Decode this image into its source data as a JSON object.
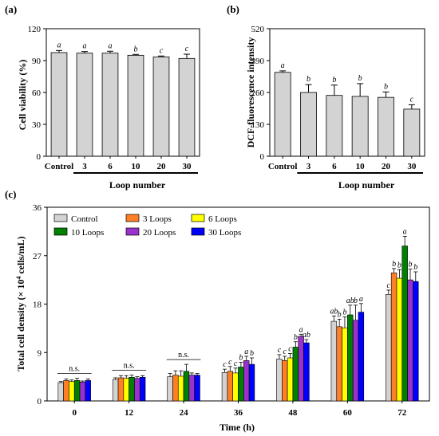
{
  "chart_data": [
    {
      "panel": "(a)",
      "type": "bar",
      "ylabel": "Cell viability (%)",
      "xlabel": "Loop number",
      "ylim": [
        0,
        120
      ],
      "yticks": [
        0,
        30,
        60,
        90,
        120
      ],
      "categories": [
        "Control",
        "3",
        "6",
        "10",
        "20",
        "30"
      ],
      "values": [
        97.5,
        97,
        97,
        95,
        93.5,
        92
      ],
      "errors": [
        2,
        1.5,
        1.8,
        0.8,
        0.8,
        4
      ],
      "letters": [
        "a",
        "a",
        "a",
        "b",
        "c",
        "c"
      ],
      "colors": {
        "bar": "#d3d3d3"
      }
    },
    {
      "panel": "(b)",
      "type": "bar",
      "ylabel": "DCF-fluorescence intensity",
      "xlabel": "Loop number",
      "ylim": [
        0,
        520
      ],
      "yticks": [
        0,
        130,
        260,
        390,
        520
      ],
      "categories": [
        "Control",
        "3",
        "6",
        "10",
        "20",
        "30"
      ],
      "values": [
        342,
        260,
        248,
        244,
        240,
        192
      ],
      "errors": [
        6,
        32,
        42,
        52,
        22,
        18
      ],
      "letters": [
        "a",
        "b",
        "b",
        "b",
        "b",
        "c"
      ],
      "colors": {
        "bar": "#d3d3d3"
      }
    },
    {
      "panel": "(c)",
      "type": "bar",
      "ylabel_prefix": "Total cell density (× 10",
      "ylabel_sup": "4",
      "ylabel_suffix": " cells/mL)",
      "xlabel": "Time (h)",
      "ylim": [
        0,
        36
      ],
      "yticks": [
        0,
        9,
        18,
        27,
        36
      ],
      "categories": [
        "0",
        "12",
        "24",
        "36",
        "48",
        "60",
        "72"
      ],
      "legend_position": "top-left",
      "series": [
        {
          "name": "Control",
          "color": "#d3d3d3",
          "values": [
            3.4,
            4.0,
            4.5,
            5.3,
            7.8,
            14.8,
            19.8
          ],
          "errors": [
            0.2,
            0.3,
            0.6,
            0.6,
            0.8,
            1.0,
            0.8
          ],
          "letters": [
            "",
            "",
            "",
            "c",
            "c",
            "ab",
            "c"
          ]
        },
        {
          "name": "3 Loops",
          "color": "#ff7f27",
          "values": [
            3.8,
            4.3,
            4.8,
            5.5,
            7.5,
            13.8,
            23.8
          ],
          "errors": [
            0.3,
            0.4,
            0.8,
            0.9,
            0.8,
            1.4,
            0.8
          ],
          "letters": [
            "",
            "",
            "",
            "c",
            "c",
            "b",
            "b"
          ]
        },
        {
          "name": "6 Loops",
          "color": "#ffff00",
          "values": [
            3.6,
            4.2,
            4.6,
            5.2,
            8.0,
            13.6,
            22.8
          ],
          "errors": [
            0.3,
            0.5,
            1.0,
            0.9,
            0.8,
            2.0,
            1.6
          ],
          "letters": [
            "",
            "",
            "",
            "c",
            "c",
            "b",
            "b"
          ]
        },
        {
          "name": "10 Loops",
          "color": "#008000",
          "values": [
            3.8,
            4.4,
            5.5,
            6.3,
            10.0,
            16.0,
            28.8
          ],
          "errors": [
            0.4,
            0.4,
            1.3,
            0.9,
            1.0,
            1.8,
            1.8
          ],
          "letters": [
            "",
            "",
            "",
            "b",
            "b",
            "ab",
            "a"
          ]
        },
        {
          "name": "20 Loops",
          "color": "#9932cc",
          "values": [
            3.5,
            4.2,
            4.8,
            7.5,
            12.0,
            15.0,
            22.5
          ],
          "errors": [
            0.2,
            0.3,
            0.4,
            0.8,
            0.4,
            2.8,
            2.0
          ],
          "letters": [
            "",
            "",
            "",
            "a",
            "a",
            "b",
            "b"
          ]
        },
        {
          "name": "30 Loops",
          "color": "#0000ff",
          "values": [
            3.8,
            4.4,
            4.8,
            6.8,
            10.8,
            16.5,
            22.2
          ],
          "errors": [
            0.3,
            0.3,
            0.3,
            1.2,
            0.6,
            1.6,
            1.8
          ],
          "letters": [
            "",
            "",
            "",
            "b",
            "ab",
            "a",
            "b"
          ]
        }
      ],
      "ns_annotations": [
        {
          "category": "0",
          "text": "n.s."
        },
        {
          "category": "12",
          "text": "n.s."
        },
        {
          "category": "24",
          "text": "n.s."
        }
      ]
    }
  ]
}
